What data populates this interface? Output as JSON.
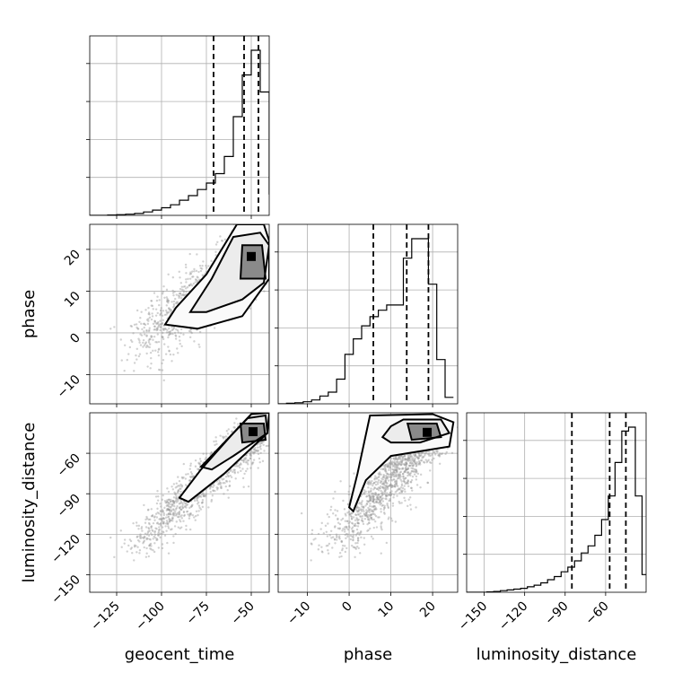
{
  "chart_data": {
    "type": "corner",
    "parameters": [
      "geocent_time",
      "phase",
      "luminosity_distance"
    ],
    "axes": {
      "geocent_time": {
        "range": [
          -140,
          -40
        ],
        "ticks": [
          -125,
          -100,
          -75,
          -50
        ],
        "tick_labels": [
          "−125",
          "−100",
          "−75",
          "−50"
        ]
      },
      "phase": {
        "range": [
          -17,
          26
        ],
        "ticks": [
          -10,
          0,
          10,
          20
        ],
        "tick_labels": [
          "−10",
          "0",
          "10",
          "20"
        ]
      },
      "luminosity_distance": {
        "range": [
          -163,
          -30
        ],
        "ticks": [
          -150,
          -120,
          -90,
          -60
        ],
        "tick_labels": [
          "−150",
          "−120",
          "−90",
          "−60"
        ]
      }
    },
    "histograms": [
      {
        "parameter": "geocent_time",
        "bin_edges": [
          -140,
          -135,
          -130,
          -125,
          -120,
          -115,
          -110,
          -105,
          -100,
          -95,
          -90,
          -85,
          -80,
          -75,
          -70,
          -65,
          -60,
          -55,
          -50,
          -45,
          -40
        ],
        "counts": [
          0,
          0,
          1,
          2,
          3,
          5,
          9,
          14,
          20,
          28,
          40,
          52,
          68,
          85,
          110,
          155,
          260,
          370,
          435,
          325,
          55
        ],
        "quantiles": [
          -71,
          -54,
          -46
        ]
      },
      {
        "parameter": "phase",
        "bin_edges": [
          -17,
          -15,
          -13,
          -11,
          -9,
          -7,
          -5,
          -3,
          -1,
          1,
          3,
          5,
          7,
          9,
          11,
          13,
          15,
          17,
          19,
          21,
          23,
          25
        ],
        "counts": [
          0,
          2,
          4,
          8,
          15,
          30,
          45,
          95,
          190,
          250,
          300,
          335,
          360,
          380,
          380,
          560,
          635,
          635,
          460,
          170,
          25
        ],
        "quantiles": [
          5.8,
          13.8,
          19
        ]
      },
      {
        "parameter": "luminosity_distance",
        "bin_edges": [
          -163,
          -158,
          -153,
          -148,
          -143,
          -138,
          -133,
          -128,
          -123,
          -118,
          -113,
          -108,
          -103,
          -98,
          -93,
          -88,
          -83,
          -78,
          -73,
          -68,
          -63,
          -58,
          -53,
          -48,
          -43,
          -38,
          -33,
          -28
        ],
        "counts": [
          0,
          0,
          0,
          1,
          2,
          4,
          6,
          8,
          10,
          14,
          18,
          24,
          32,
          40,
          52,
          64,
          80,
          100,
          118,
          145,
          185,
          245,
          330,
          410,
          420,
          245,
          45
        ],
        "quantiles": [
          -85,
          -57,
          -45
        ]
      }
    ],
    "grid": true
  }
}
